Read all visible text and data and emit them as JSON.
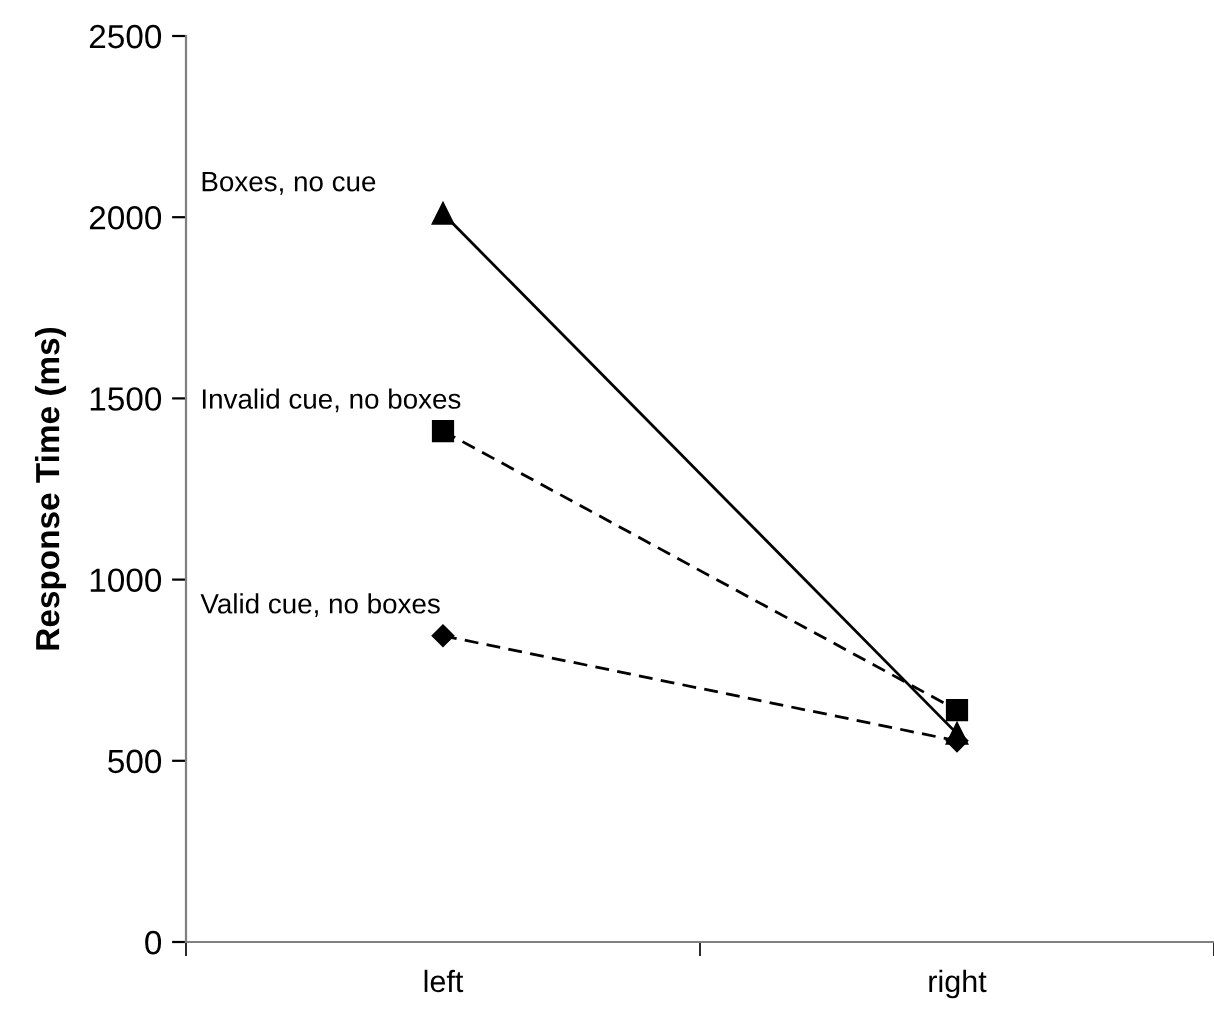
{
  "chart_data": {
    "type": "line",
    "ylabel": "Response Time (ms)",
    "categories": [
      "left",
      "right"
    ],
    "ylim": [
      0,
      2500
    ],
    "yticks": [
      0,
      500,
      1000,
      1500,
      2000,
      2500
    ],
    "grid": false,
    "legend": false,
    "series": [
      {
        "name": "Boxes, no cue",
        "color": "#000000",
        "marker": "triangle",
        "line_style": "solid",
        "values": [
          2010,
          575
        ]
      },
      {
        "name": "Invalid cue, no boxes",
        "color": "#000000",
        "marker": "square",
        "line_style": "dashed",
        "values": [
          1410,
          640
        ]
      },
      {
        "name": "Valid cue, no boxes",
        "color": "#000000",
        "marker": "diamond",
        "line_style": "dashed",
        "values": [
          845,
          555
        ]
      }
    ]
  }
}
